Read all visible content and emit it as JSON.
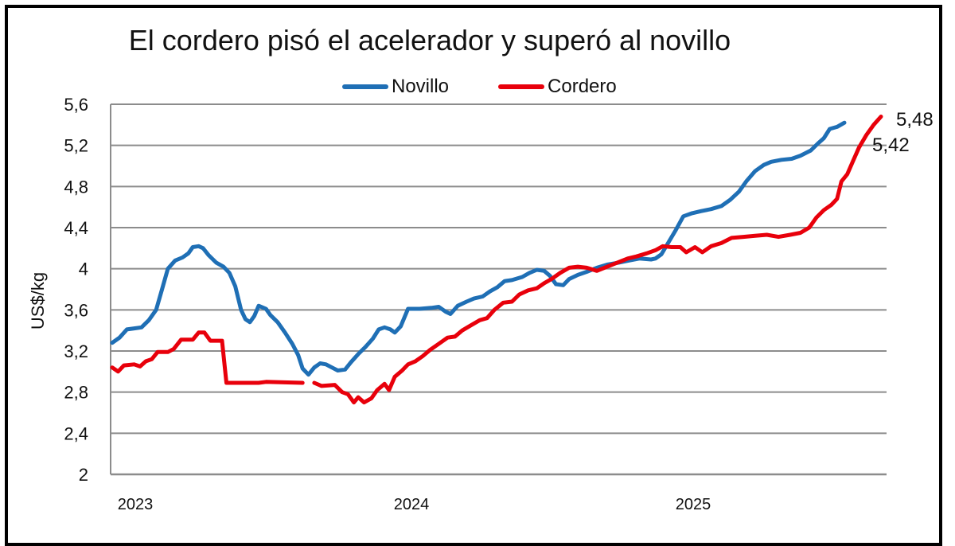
{
  "chart_data": {
    "type": "line",
    "title": "El cordero pisó el acelerador y superó al novillo",
    "xlabel": "",
    "ylabel": "US$/kg",
    "ylim": [
      2,
      5.6
    ],
    "yticks": [
      2,
      2.4,
      2.8,
      3.2,
      3.6,
      4,
      4.4,
      4.8,
      5.2,
      5.6
    ],
    "ytick_labels": [
      "2",
      "2,4",
      "2,8",
      "3,2",
      "3,6",
      "4",
      "4,4",
      "4,8",
      "5,2",
      "5,6"
    ],
    "xtick_labels": [
      "2023",
      "2024",
      "2025"
    ],
    "grid": true,
    "legend_position": "top",
    "colors": {
      "Novillo": "#1f6fb5",
      "Cordero": "#e8000b"
    },
    "annotations": [
      {
        "text": "5,48",
        "series": "Cordero",
        "value": 5.48
      },
      {
        "text": "5,42",
        "series": "Novillo",
        "value": 5.42
      }
    ],
    "x_unit": "fraction of time axis (0 = start Jan 2023, 1 = latest week 2025)",
    "series": [
      {
        "name": "Novillo",
        "points": [
          [
            0.0,
            3.28
          ],
          [
            0.01,
            3.33
          ],
          [
            0.02,
            3.41
          ],
          [
            0.03,
            3.42
          ],
          [
            0.04,
            3.43
          ],
          [
            0.05,
            3.5
          ],
          [
            0.06,
            3.6
          ],
          [
            0.068,
            3.8
          ],
          [
            0.076,
            4.0
          ],
          [
            0.086,
            4.08
          ],
          [
            0.096,
            4.11
          ],
          [
            0.104,
            4.15
          ],
          [
            0.11,
            4.21
          ],
          [
            0.118,
            4.22
          ],
          [
            0.124,
            4.2
          ],
          [
            0.132,
            4.13
          ],
          [
            0.142,
            4.06
          ],
          [
            0.152,
            4.02
          ],
          [
            0.16,
            3.96
          ],
          [
            0.168,
            3.83
          ],
          [
            0.176,
            3.6
          ],
          [
            0.182,
            3.51
          ],
          [
            0.188,
            3.48
          ],
          [
            0.194,
            3.54
          ],
          [
            0.2,
            3.64
          ],
          [
            0.21,
            3.61
          ],
          [
            0.216,
            3.55
          ],
          [
            0.226,
            3.48
          ],
          [
            0.236,
            3.38
          ],
          [
            0.246,
            3.27
          ],
          [
            0.254,
            3.16
          ],
          [
            0.26,
            3.03
          ],
          [
            0.268,
            2.97
          ],
          [
            0.276,
            3.04
          ],
          [
            0.284,
            3.08
          ],
          [
            0.292,
            3.07
          ],
          [
            0.3,
            3.04
          ],
          [
            0.308,
            3.01
          ],
          [
            0.318,
            3.02
          ],
          [
            0.326,
            3.09
          ],
          [
            0.336,
            3.17
          ],
          [
            0.346,
            3.24
          ],
          [
            0.356,
            3.32
          ],
          [
            0.364,
            3.41
          ],
          [
            0.372,
            3.43
          ],
          [
            0.38,
            3.41
          ],
          [
            0.386,
            3.38
          ],
          [
            0.394,
            3.44
          ],
          [
            0.404,
            3.61
          ],
          [
            0.42,
            3.61
          ],
          [
            0.436,
            3.62
          ],
          [
            0.446,
            3.63
          ],
          [
            0.456,
            3.58
          ],
          [
            0.462,
            3.56
          ],
          [
            0.472,
            3.64
          ],
          [
            0.484,
            3.68
          ],
          [
            0.494,
            3.71
          ],
          [
            0.506,
            3.73
          ],
          [
            0.516,
            3.78
          ],
          [
            0.526,
            3.82
          ],
          [
            0.536,
            3.88
          ],
          [
            0.546,
            3.89
          ],
          [
            0.56,
            3.92
          ],
          [
            0.57,
            3.96
          ],
          [
            0.58,
            3.99
          ],
          [
            0.59,
            3.98
          ],
          [
            0.598,
            3.93
          ],
          [
            0.606,
            3.85
          ],
          [
            0.616,
            3.84
          ],
          [
            0.624,
            3.9
          ],
          [
            0.636,
            3.94
          ],
          [
            0.648,
            3.97
          ],
          [
            0.662,
            4.01
          ],
          [
            0.676,
            4.04
          ],
          [
            0.692,
            4.06
          ],
          [
            0.706,
            4.08
          ],
          [
            0.72,
            4.1
          ],
          [
            0.736,
            4.09
          ],
          [
            0.742,
            4.1
          ],
          [
            0.75,
            4.14
          ],
          [
            0.76,
            4.26
          ],
          [
            0.77,
            4.38
          ],
          [
            0.78,
            4.51
          ],
          [
            0.792,
            4.54
          ],
          [
            0.804,
            4.56
          ],
          [
            0.818,
            4.58
          ],
          [
            0.832,
            4.61
          ],
          [
            0.844,
            4.67
          ],
          [
            0.856,
            4.75
          ],
          [
            0.866,
            4.85
          ],
          [
            0.878,
            4.95
          ],
          [
            0.89,
            5.01
          ],
          [
            0.9,
            5.04
          ],
          [
            0.914,
            5.06
          ],
          [
            0.928,
            5.07
          ],
          [
            0.94,
            5.1
          ],
          [
            0.954,
            5.15
          ],
          [
            0.964,
            5.22
          ],
          [
            0.972,
            5.27
          ],
          [
            0.98,
            5.36
          ],
          [
            0.99,
            5.38
          ],
          [
            1.0,
            5.42
          ]
        ]
      },
      {
        "name": "Cordero",
        "points_segments": [
          [
            [
              0.0,
              3.04
            ],
            [
              0.008,
              3.0
            ],
            [
              0.016,
              3.06
            ],
            [
              0.03,
              3.07
            ],
            [
              0.038,
              3.05
            ],
            [
              0.046,
              3.1
            ],
            [
              0.054,
              3.12
            ],
            [
              0.062,
              3.19
            ],
            [
              0.076,
              3.19
            ],
            [
              0.084,
              3.22
            ],
            [
              0.094,
              3.31
            ],
            [
              0.11,
              3.31
            ],
            [
              0.118,
              3.38
            ],
            [
              0.126,
              3.38
            ],
            [
              0.134,
              3.3
            ],
            [
              0.15,
              3.3
            ],
            [
              0.156,
              2.89
            ],
            [
              0.2,
              2.89
            ],
            [
              0.21,
              2.9
            ],
            [
              0.26,
              2.89
            ]
          ],
          [
            [
              0.276,
              2.89
            ],
            [
              0.286,
              2.86
            ],
            [
              0.304,
              2.87
            ],
            [
              0.314,
              2.8
            ],
            [
              0.322,
              2.78
            ],
            [
              0.33,
              2.7
            ],
            [
              0.336,
              2.75
            ],
            [
              0.344,
              2.7
            ],
            [
              0.354,
              2.74
            ],
            [
              0.362,
              2.82
            ],
            [
              0.372,
              2.88
            ],
            [
              0.378,
              2.82
            ],
            [
              0.386,
              2.95
            ],
            [
              0.396,
              3.01
            ],
            [
              0.404,
              3.07
            ],
            [
              0.414,
              3.1
            ],
            [
              0.424,
              3.15
            ],
            [
              0.434,
              3.21
            ],
            [
              0.446,
              3.27
            ],
            [
              0.458,
              3.33
            ],
            [
              0.468,
              3.34
            ],
            [
              0.478,
              3.4
            ],
            [
              0.49,
              3.45
            ],
            [
              0.502,
              3.5
            ],
            [
              0.512,
              3.52
            ],
            [
              0.522,
              3.6
            ],
            [
              0.534,
              3.67
            ],
            [
              0.546,
              3.68
            ],
            [
              0.556,
              3.75
            ],
            [
              0.568,
              3.79
            ],
            [
              0.58,
              3.81
            ],
            [
              0.59,
              3.86
            ],
            [
              0.6,
              3.9
            ],
            [
              0.612,
              3.96
            ],
            [
              0.624,
              4.01
            ],
            [
              0.636,
              4.02
            ],
            [
              0.648,
              4.01
            ],
            [
              0.662,
              3.98
            ],
            [
              0.676,
              4.02
            ],
            [
              0.69,
              4.06
            ],
            [
              0.704,
              4.1
            ],
            [
              0.716,
              4.12
            ],
            [
              0.73,
              4.15
            ],
            [
              0.742,
              4.18
            ],
            [
              0.752,
              4.22
            ],
            [
              0.764,
              4.21
            ],
            [
              0.776,
              4.21
            ],
            [
              0.784,
              4.16
            ],
            [
              0.796,
              4.21
            ],
            [
              0.806,
              4.16
            ],
            [
              0.818,
              4.22
            ],
            [
              0.832,
              4.25
            ],
            [
              0.846,
              4.3
            ],
            [
              0.862,
              4.31
            ],
            [
              0.878,
              4.32
            ],
            [
              0.894,
              4.33
            ],
            [
              0.91,
              4.31
            ],
            [
              0.926,
              4.33
            ],
            [
              0.94,
              4.35
            ],
            [
              0.952,
              4.4
            ],
            [
              0.962,
              4.5
            ],
            [
              0.972,
              4.57
            ],
            [
              0.982,
              4.62
            ],
            [
              0.99,
              4.68
            ],
            [
              0.996,
              4.85
            ],
            [
              1.004,
              4.92
            ],
            [
              1.012,
              5.05
            ],
            [
              1.02,
              5.18
            ],
            [
              1.03,
              5.3
            ],
            [
              1.04,
              5.4
            ],
            [
              1.05,
              5.48
            ]
          ]
        ]
      }
    ]
  },
  "legend": {
    "items": [
      {
        "label": "Novillo",
        "color": "#1f6fb5"
      },
      {
        "label": "Cordero",
        "color": "#e8000b"
      }
    ]
  },
  "annotations": {
    "cordero_last": "5,48",
    "novillo_last": "5,42"
  }
}
